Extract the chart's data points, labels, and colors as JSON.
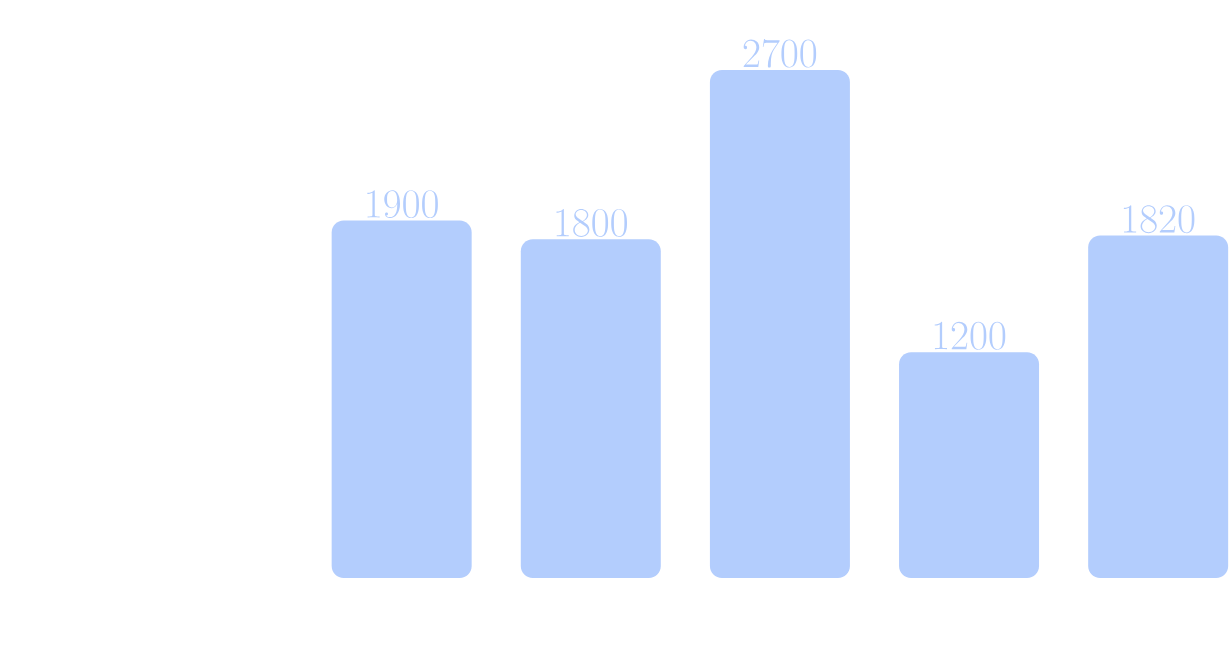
{
  "chart_data": {
    "type": "bar",
    "categories": [
      null,
      null,
      null,
      null,
      null
    ],
    "values": [
      1900,
      1800,
      2700,
      1200,
      1820
    ],
    "color": "#b3cdfd",
    "data_labels": true
  }
}
